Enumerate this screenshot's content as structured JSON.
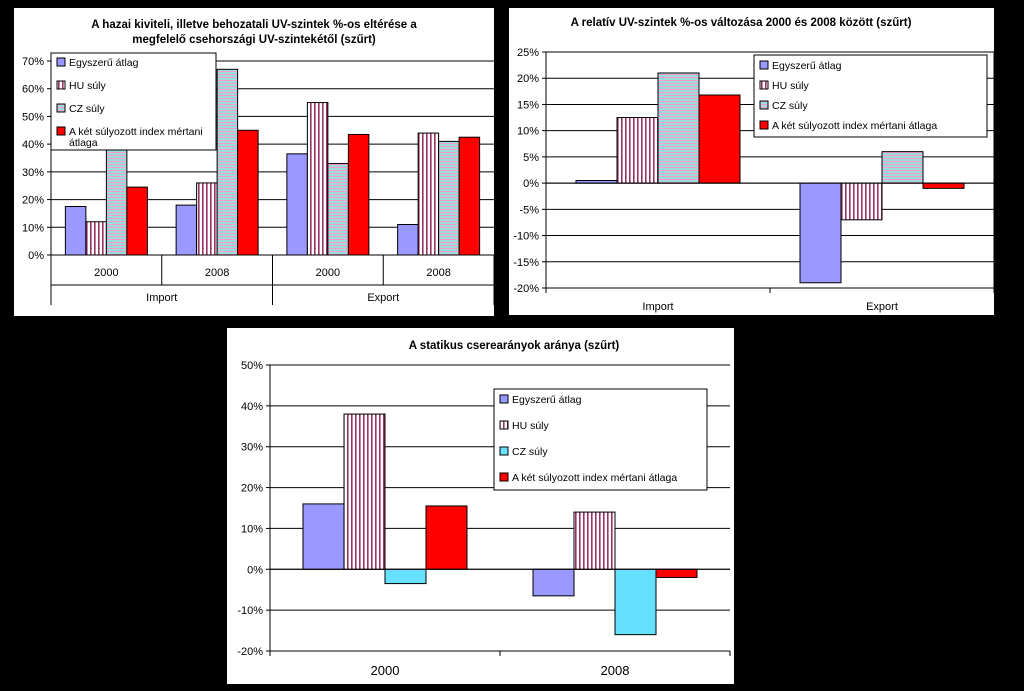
{
  "charts": [
    {
      "type": "bar",
      "title_lines": [
        "A hazai kiviteli, illetve behozatali UV-szintek  %-os eltérése a",
        "megfelelő csehországi UV-szintekétől (szűrt)"
      ],
      "y_ticks": [
        "70%",
        "60%",
        "50%",
        "40%",
        "30%",
        "20%",
        "10%",
        "0%"
      ],
      "ylim": [
        0,
        70
      ],
      "groups": [
        "Import",
        "Export"
      ],
      "categories": [
        "2000",
        "2008",
        "2000",
        "2008"
      ],
      "legend": [
        "Egyszerű átlag",
        "HU súly",
        "CZ súly",
        "A két súlyozott index mértani átlaga"
      ],
      "legend_placement": "top-left",
      "gridlines": true,
      "series": [
        {
          "name": "Egyszerű átlag",
          "values": [
            17.5,
            18,
            36.5,
            11
          ]
        },
        {
          "name": "HU súly",
          "values": [
            12,
            26,
            55,
            44
          ]
        },
        {
          "name": "CZ súly",
          "values": [
            38,
            67,
            33,
            41
          ]
        },
        {
          "name": "A két súlyozott index mértani átlaga",
          "values": [
            24.5,
            45,
            43.5,
            42.5
          ]
        }
      ]
    },
    {
      "type": "bar",
      "title_lines": [
        "A relatív UV-szintek  %-os változása 2000 és 2008 között (szűrt)"
      ],
      "y_ticks": [
        "25%",
        "20%",
        "15%",
        "10%",
        "5%",
        "0%",
        "-5%",
        "-10%",
        "-15%",
        "-20%"
      ],
      "ylim": [
        -20,
        25
      ],
      "categories": [
        "Import",
        "Export"
      ],
      "legend": [
        "Egyszerű átlag",
        "HU súly",
        "CZ súly",
        "A két súlyozott index mértani átlaga"
      ],
      "legend_placement": "top-right",
      "gridlines": true,
      "series": [
        {
          "name": "Egyszerű átlag",
          "values": [
            0.5,
            -19
          ]
        },
        {
          "name": "HU súly",
          "values": [
            12.5,
            -7
          ]
        },
        {
          "name": "CZ súly",
          "values": [
            21,
            6
          ]
        },
        {
          "name": "A két súlyozott index mértani átlaga",
          "values": [
            16.8,
            -1
          ]
        }
      ]
    },
    {
      "type": "bar",
      "title_lines": [
        "A statikus cserearányok aránya (szűrt)"
      ],
      "y_ticks": [
        "50%",
        "40%",
        "30%",
        "20%",
        "10%",
        "0%",
        "-10%",
        "-20%"
      ],
      "ylim": [
        -20,
        50
      ],
      "categories": [
        "2000",
        "2008"
      ],
      "legend": [
        "Egyszerű átlag",
        "HU súly",
        "CZ súly",
        "A  két súlyozott index mértani átlaga"
      ],
      "legend_placement": "top-right",
      "gridlines": true,
      "series": [
        {
          "name": "Egyszerű átlag",
          "values": [
            16,
            -6.5
          ]
        },
        {
          "name": "HU súly",
          "values": [
            38,
            14
          ]
        },
        {
          "name": "CZ súly",
          "values": [
            -3.5,
            -16
          ]
        },
        {
          "name": "A  két súlyozott index mértani átlaga",
          "values": [
            15.5,
            -2
          ]
        }
      ]
    }
  ],
  "colors": {
    "simple": "#9999ff",
    "hu_stripe": "#993366",
    "cz_fill": "#99dddd",
    "cz_stripe": "#ff99cc",
    "cz_fill3": "#66e0ff",
    "geo": "#ff0000"
  }
}
